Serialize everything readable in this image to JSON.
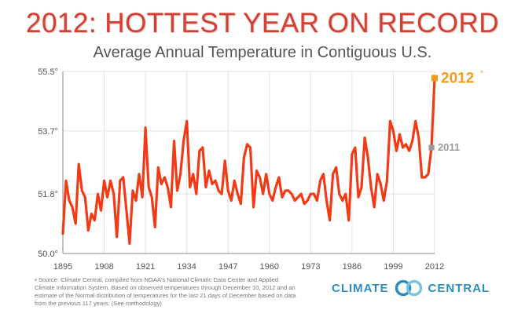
{
  "title": "2012: HOTTEST YEAR ON RECORD",
  "subtitle": "Average Annual Temperature in Contiguous U.S.",
  "source_note": "Source: Climate Central, compiled from NOAA's National Climatic Data Center and Applied Climate Information System. Based on observed temperatures through December 10, 2012 and an estimate of the Normal distribution of temperatures for the last 21 days of December based on data from the previous 117 years. (See methodology)",
  "logo": {
    "left": "CLIMATE",
    "right": "CENTRAL"
  },
  "colors": {
    "line": "#f23a16",
    "highlight": "#f39c1a",
    "marker_2011": "#999999",
    "grid": "#e2e2e2",
    "title": "#d24135"
  },
  "chart_data": {
    "type": "line",
    "title": "Average Annual Temperature in Contiguous U.S.",
    "xlabel": "",
    "ylabel": "",
    "xlim": [
      1895,
      2012
    ],
    "ylim": [
      50.0,
      55.5
    ],
    "x_ticks": [
      "1895",
      "1908",
      "1921",
      "1934",
      "1947",
      "1960",
      "1973",
      "1986",
      "1999",
      "2012"
    ],
    "y_ticks": [
      "50.0°",
      "51.8°",
      "53.7°",
      "55.5°"
    ],
    "y_tick_values": [
      50.0,
      51.8,
      53.7,
      55.5
    ],
    "grid": true,
    "annotations": [
      {
        "year": 2012,
        "label": "2012",
        "value": 55.3
      },
      {
        "year": 2011,
        "label": "2011",
        "value": 53.2
      }
    ],
    "series": [
      {
        "name": "Average annual temperature (°F)",
        "x": [
          1895,
          1896,
          1897,
          1898,
          1899,
          1900,
          1901,
          1902,
          1903,
          1904,
          1905,
          1906,
          1907,
          1908,
          1909,
          1910,
          1911,
          1912,
          1913,
          1914,
          1915,
          1916,
          1917,
          1918,
          1919,
          1920,
          1921,
          1922,
          1923,
          1924,
          1925,
          1926,
          1927,
          1928,
          1929,
          1930,
          1931,
          1932,
          1933,
          1934,
          1935,
          1936,
          1937,
          1938,
          1939,
          1940,
          1941,
          1942,
          1943,
          1944,
          1945,
          1946,
          1947,
          1948,
          1949,
          1950,
          1951,
          1952,
          1953,
          1954,
          1955,
          1956,
          1957,
          1958,
          1959,
          1960,
          1961,
          1962,
          1963,
          1964,
          1965,
          1966,
          1967,
          1968,
          1969,
          1970,
          1971,
          1972,
          1973,
          1974,
          1975,
          1976,
          1977,
          1978,
          1979,
          1980,
          1981,
          1982,
          1983,
          1984,
          1985,
          1986,
          1987,
          1988,
          1989,
          1990,
          1991,
          1992,
          1993,
          1994,
          1995,
          1996,
          1997,
          1998,
          1999,
          2000,
          2001,
          2002,
          2003,
          2004,
          2005,
          2006,
          2007,
          2008,
          2009,
          2010,
          2011,
          2012
        ],
        "values": [
          50.6,
          52.2,
          51.6,
          51.4,
          50.9,
          52.7,
          51.9,
          51.7,
          50.7,
          51.2,
          51.0,
          51.8,
          51.3,
          52.2,
          51.7,
          52.2,
          51.8,
          50.5,
          52.2,
          52.3,
          51.3,
          50.3,
          51.9,
          51.6,
          52.4,
          51.7,
          53.8,
          52.0,
          51.7,
          50.8,
          52.6,
          52.1,
          52.3,
          52.0,
          51.4,
          53.4,
          51.9,
          52.4,
          53.4,
          54.0,
          52.0,
          52.4,
          51.8,
          53.1,
          53.2,
          52.0,
          52.5,
          52.1,
          52.2,
          51.9,
          51.8,
          52.8,
          51.9,
          51.6,
          52.2,
          51.8,
          51.5,
          52.9,
          53.3,
          53.2,
          51.4,
          52.5,
          52.3,
          51.8,
          52.4,
          51.8,
          51.6,
          52.0,
          52.3,
          51.7,
          51.9,
          51.9,
          51.8,
          51.6,
          51.7,
          51.8,
          51.5,
          51.6,
          51.8,
          51.8,
          51.6,
          52.2,
          52.4,
          51.6,
          51.0,
          52.4,
          52.6,
          51.8,
          51.6,
          51.8,
          51.0,
          53.0,
          53.2,
          51.7,
          52.0,
          53.5,
          52.9,
          52.0,
          51.4,
          52.4,
          52.1,
          51.6,
          52.2,
          54.0,
          53.7,
          53.1,
          53.6,
          53.2,
          53.3,
          53.1,
          53.4,
          54.0,
          53.5,
          52.3,
          52.3,
          52.4,
          53.2,
          55.3
        ]
      }
    ]
  }
}
